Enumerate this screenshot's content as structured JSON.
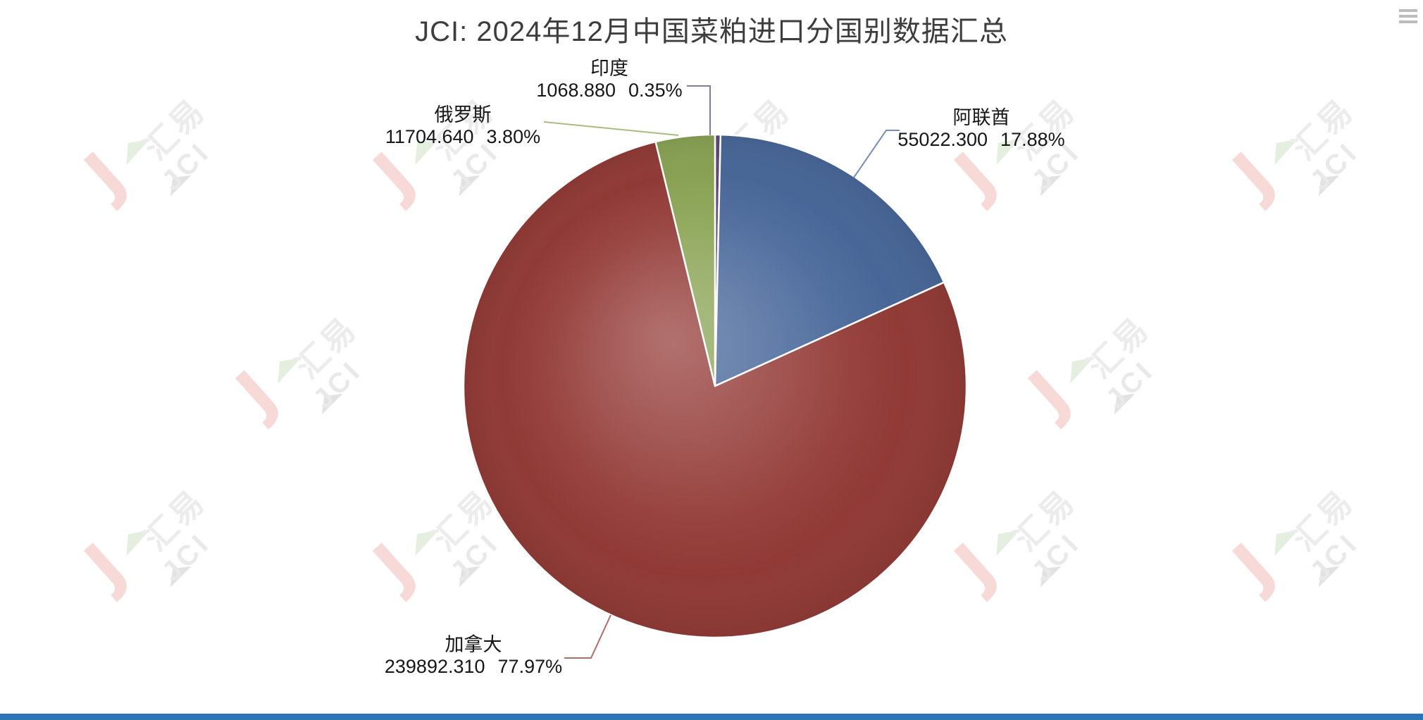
{
  "title": "JCI: 2024年12月中国菜粕进口分国别数据汇总",
  "chart_data": {
    "type": "pie",
    "title": "JCI: 2024年12月中国菜粕进口分国别数据汇总",
    "direction": "clockwise",
    "start_angle": "12-oclock",
    "legend_position": "none",
    "slices": [
      {
        "key": "india",
        "name": "印度",
        "value": 1068.88,
        "value_label": "1068.880",
        "percent": 0.35,
        "percent_label": "0.35%",
        "color": "#5E4B77"
      },
      {
        "key": "uae",
        "name": "阿联酋",
        "value": 55022.3,
        "value_label": "55022.300",
        "percent": 17.88,
        "percent_label": "17.88%",
        "color": "#4A699B"
      },
      {
        "key": "canada",
        "name": "加拿大",
        "value": 239892.31,
        "value_label": "239892.310",
        "percent": 77.97,
        "percent_label": "77.97%",
        "color": "#943C38"
      },
      {
        "key": "russia",
        "name": "俄罗斯",
        "value": 11704.64,
        "value_label": "11704.640",
        "percent": 3.8,
        "percent_label": "3.80%",
        "color": "#8CA556"
      }
    ]
  },
  "watermark": {
    "text_cn": "汇易",
    "text_en": "JCI"
  },
  "ui": {
    "menu_icon": "hamburger-menu"
  }
}
